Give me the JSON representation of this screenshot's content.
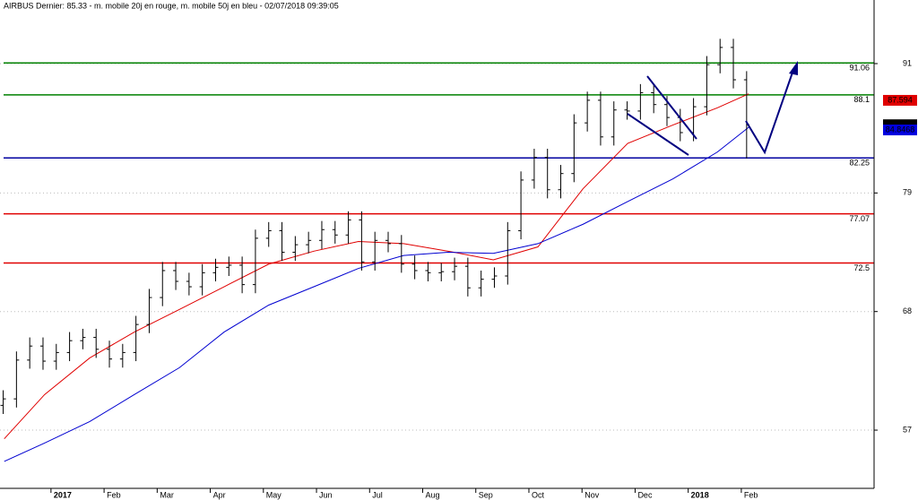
{
  "chart_data": {
    "type": "ohlc",
    "title": "AIRBUS Dernier: 85.33 - m. mobile 20j en rouge, m. mobile 50j en bleu - 02/07/2018 09:39:05",
    "xlim": [
      -0.96,
      15.5
    ],
    "ylim": [
      51.6,
      96.9
    ],
    "xticks": [
      {
        "value": 0,
        "label": "2017"
      },
      {
        "value": 1,
        "label": "Feb"
      },
      {
        "value": 2,
        "label": "Mar"
      },
      {
        "value": 3,
        "label": "Apr"
      },
      {
        "value": 4,
        "label": "May"
      },
      {
        "value": 5,
        "label": "Jun"
      },
      {
        "value": 6,
        "label": "Jul"
      },
      {
        "value": 7,
        "label": "Aug"
      },
      {
        "value": 8,
        "label": "Sep"
      },
      {
        "value": 9,
        "label": "Oct"
      },
      {
        "value": 10,
        "label": "Nov"
      },
      {
        "value": 11,
        "label": "Dec"
      },
      {
        "value": 12,
        "label": "2018"
      },
      {
        "value": 13,
        "label": "Feb"
      }
    ],
    "yticks": [
      57,
      68,
      79,
      91
    ],
    "color": "#000000",
    "x": [
      -0.9,
      -0.65,
      -0.4,
      -0.15,
      0.1,
      0.35,
      0.6,
      0.85,
      1.1,
      1.35,
      1.6,
      1.85,
      2.1,
      2.35,
      2.6,
      2.85,
      3.1,
      3.35,
      3.6,
      3.85,
      4.1,
      4.35,
      4.6,
      4.85,
      5.1,
      5.35,
      5.6,
      5.85,
      6.1,
      6.35,
      6.6,
      6.85,
      7.1,
      7.35,
      7.6,
      7.85,
      8.1,
      8.35,
      8.6,
      8.85,
      9.1,
      9.35,
      9.6,
      9.85,
      10.1,
      10.35,
      10.6,
      10.85,
      11.1,
      11.35,
      11.6,
      11.85,
      12.1,
      12.35,
      12.6,
      12.85,
      13.1
    ],
    "open": [
      59.3,
      59.9,
      63.5,
      64.8,
      63.4,
      64.2,
      65.3,
      65.6,
      64.5,
      63.6,
      64.2,
      66.8,
      69.3,
      71.8,
      70.8,
      70.3,
      71.6,
      72.1,
      72.3,
      70.5,
      74.8,
      75.5,
      73.5,
      74.2,
      74.6,
      75.6,
      75.1,
      76.5,
      72.6,
      74.6,
      74.3,
      72.4,
      71.8,
      71.6,
      71.7,
      72.2,
      70.2,
      71.0,
      71.3,
      75.5,
      80.2,
      82.3,
      79.3,
      80.8,
      85.5,
      87.6,
      84.2,
      86.7,
      86.6,
      88.3,
      87.2,
      86.0,
      84.6,
      87.0,
      90.9,
      92.5,
      89.5
    ],
    "high": [
      60.7,
      64.3,
      65.6,
      65.6,
      65.0,
      66.1,
      66.4,
      66.4,
      65.3,
      65.0,
      67.6,
      70.1,
      72.6,
      72.6,
      71.6,
      72.4,
      72.9,
      73.1,
      73.1,
      75.6,
      76.3,
      76.3,
      75.0,
      75.4,
      76.4,
      76.4,
      77.3,
      77.3,
      75.4,
      75.4,
      75.1,
      73.2,
      72.6,
      72.5,
      73.0,
      73.0,
      71.8,
      72.1,
      76.3,
      81.0,
      83.1,
      83.1,
      81.6,
      86.3,
      88.4,
      88.4,
      87.5,
      87.5,
      89.1,
      89.1,
      88.0,
      86.8,
      87.8,
      91.7,
      93.3,
      93.3,
      90.3
    ],
    "low": [
      58.5,
      59.1,
      62.7,
      62.6,
      62.6,
      63.4,
      64.5,
      63.7,
      62.8,
      62.8,
      63.4,
      66.0,
      68.5,
      70.0,
      69.5,
      69.5,
      70.8,
      71.3,
      69.7,
      69.7,
      74.0,
      72.7,
      72.7,
      73.4,
      73.8,
      74.3,
      74.3,
      71.8,
      71.8,
      73.5,
      71.6,
      71.0,
      70.8,
      70.8,
      70.9,
      69.4,
      69.4,
      70.2,
      70.5,
      74.7,
      79.4,
      78.5,
      78.5,
      80.0,
      84.7,
      83.4,
      83.4,
      85.8,
      85.8,
      86.4,
      85.2,
      83.8,
      83.8,
      86.2,
      90.1,
      88.7,
      82.2
    ],
    "close": [
      59.9,
      63.5,
      64.8,
      63.4,
      64.2,
      65.3,
      65.6,
      64.5,
      63.6,
      64.2,
      66.8,
      69.3,
      71.8,
      70.8,
      70.3,
      71.6,
      72.1,
      72.3,
      70.5,
      74.8,
      75.5,
      73.5,
      74.2,
      74.6,
      75.6,
      75.1,
      76.5,
      72.6,
      74.6,
      74.3,
      72.4,
      71.8,
      71.6,
      71.7,
      72.2,
      70.2,
      71.0,
      71.3,
      75.5,
      80.2,
      82.3,
      79.3,
      80.8,
      85.5,
      87.6,
      84.2,
      86.7,
      86.6,
      88.3,
      87.2,
      86.0,
      84.6,
      87.0,
      90.9,
      92.5,
      89.5,
      85.33
    ],
    "series": [
      {
        "color": "#e00000",
        "x": [
          -0.88,
          -0.12,
          0.73,
          1.57,
          2.42,
          3.26,
          4.1,
          4.95,
          5.79,
          6.64,
          7.48,
          8.33,
          9.17,
          10.02,
          10.86,
          11.71,
          12.55,
          13.14
        ],
        "values": [
          56.2,
          60.3,
          63.7,
          66.1,
          68.2,
          70.3,
          72.4,
          73.6,
          74.5,
          74.3,
          73.6,
          72.8,
          74.0,
          79.4,
          83.6,
          85.3,
          86.9,
          88.2
        ]
      },
      {
        "color": "#0000d0",
        "x": [
          -0.88,
          -0.12,
          0.73,
          1.57,
          2.42,
          3.26,
          4.1,
          4.95,
          5.79,
          6.64,
          7.48,
          8.33,
          9.17,
          10.02,
          10.86,
          11.71,
          12.55,
          13.14
        ],
        "values": [
          54.1,
          55.8,
          57.8,
          60.3,
          62.8,
          66.1,
          68.6,
          70.3,
          72.0,
          73.2,
          73.5,
          73.4,
          74.3,
          76.1,
          78.2,
          80.3,
          82.8,
          85.1
        ]
      }
    ],
    "levels": [
      {
        "value": 91.06,
        "color": "#008000"
      },
      {
        "value": 88.1,
        "color": "#008000"
      },
      {
        "value": 82.25,
        "color": "#0000a0"
      },
      {
        "value": 77.07,
        "color": "#e00000"
      },
      {
        "value": 72.5,
        "color": "#e00000"
      }
    ],
    "price_labels": [
      {
        "value": 87.594,
        "color": "#e00000"
      },
      {
        "value": 85.33,
        "color": "#000000"
      },
      {
        "value": 84.8468,
        "color": "#0000e0"
      }
    ]
  }
}
